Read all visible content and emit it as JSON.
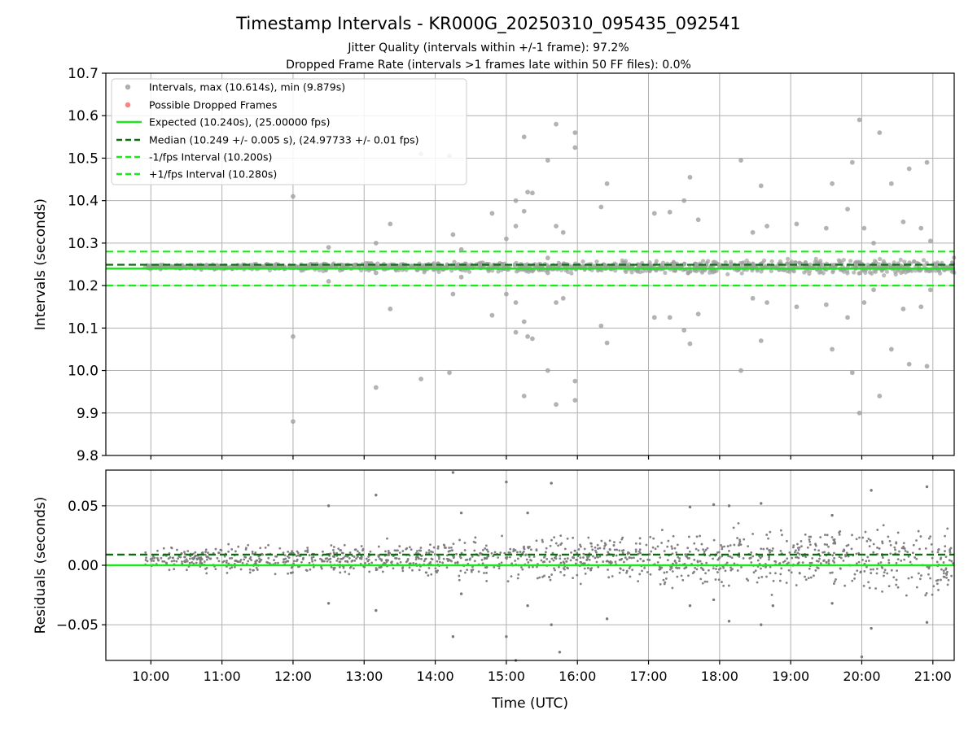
{
  "figure": {
    "title": "Timestamp Intervals - KR000G_20250310_095435_092541",
    "subtitle_1": "Jitter Quality (intervals within +/-1 frame): 97.2%",
    "subtitle_2": "Dropped Frame Rate (intervals >1 frames late within 50 FF files): 0.0%"
  },
  "colors": {
    "intervals": "#a0a0a0",
    "residuals": "#7a7a7a",
    "dropped": "#ff6b6b",
    "expected": "#1ee61e",
    "median": "#0e6b0e",
    "fps_bounds": "#1ee61e",
    "grid": "#b0b0b0"
  },
  "chart_data": [
    {
      "type": "scatter",
      "panel": "intervals",
      "ylabel": "Intervals (seconds)",
      "xlabel": "",
      "xlim": [
        "09:22",
        "21:18"
      ],
      "ylim": [
        9.8,
        10.7
      ],
      "yticks": [
        9.8,
        9.9,
        10.0,
        10.1,
        10.2,
        10.3,
        10.4,
        10.5,
        10.6,
        10.7
      ],
      "ytick_labels": [
        "9.8",
        "9.9",
        "10.0",
        "10.1",
        "10.2",
        "10.3",
        "10.4",
        "10.5",
        "10.6",
        "10.7"
      ],
      "grid": true,
      "legend_position": "top-left",
      "legend": [
        "Intervals, max (10.614s), min (9.879s)",
        "Possible Dropped Frames",
        "Expected (10.240s), (25.00000 fps)",
        "Median (10.249 +/- 0.005 s), (24.97733 +/- 0.01 fps)",
        "-1/fps Interval (10.200s)",
        "+1/fps Interval (10.280s)"
      ],
      "reference_lines": {
        "expected": 10.24,
        "median": 10.249,
        "minus_1fps": 10.2,
        "plus_1fps": 10.28
      },
      "dense_band": {
        "x_start": "09:55",
        "x_end": "21:18",
        "y_center": 10.244,
        "y_spread_start": 0.004,
        "y_spread_end": 0.013
      },
      "outliers": [
        {
          "x": "12:00",
          "y": 10.41
        },
        {
          "x": "12:00",
          "y": 10.08
        },
        {
          "x": "12:00",
          "y": 9.88
        },
        {
          "x": "12:30",
          "y": 10.29
        },
        {
          "x": "12:30",
          "y": 10.21
        },
        {
          "x": "13:10",
          "y": 10.3
        },
        {
          "x": "13:10",
          "y": 9.96
        },
        {
          "x": "13:10",
          "y": 10.23
        },
        {
          "x": "13:22",
          "y": 10.345
        },
        {
          "x": "13:22",
          "y": 10.145
        },
        {
          "x": "13:48",
          "y": 10.51
        },
        {
          "x": "13:48",
          "y": 9.98
        },
        {
          "x": "14:12",
          "y": 10.505
        },
        {
          "x": "14:12",
          "y": 9.995
        },
        {
          "x": "14:15",
          "y": 10.32
        },
        {
          "x": "14:15",
          "y": 10.18
        },
        {
          "x": "14:22",
          "y": 10.285
        },
        {
          "x": "14:22",
          "y": 10.22
        },
        {
          "x": "14:48",
          "y": 10.37
        },
        {
          "x": "14:48",
          "y": 10.13
        },
        {
          "x": "15:00",
          "y": 10.31
        },
        {
          "x": "15:00",
          "y": 10.18
        },
        {
          "x": "15:08",
          "y": 10.4
        },
        {
          "x": "15:08",
          "y": 10.34
        },
        {
          "x": "15:08",
          "y": 10.16
        },
        {
          "x": "15:08",
          "y": 10.09
        },
        {
          "x": "15:15",
          "y": 10.55
        },
        {
          "x": "15:15",
          "y": 10.375
        },
        {
          "x": "15:15",
          "y": 10.115
        },
        {
          "x": "15:15",
          "y": 9.94
        },
        {
          "x": "15:18",
          "y": 10.42
        },
        {
          "x": "15:18",
          "y": 10.08
        },
        {
          "x": "15:22",
          "y": 10.418
        },
        {
          "x": "15:22",
          "y": 10.075
        },
        {
          "x": "15:35",
          "y": 10.265
        },
        {
          "x": "15:35",
          "y": 10.23
        },
        {
          "x": "15:42",
          "y": 10.58
        },
        {
          "x": "15:42",
          "y": 10.34
        },
        {
          "x": "15:42",
          "y": 10.16
        },
        {
          "x": "15:42",
          "y": 9.92
        },
        {
          "x": "15:35",
          "y": 10.495
        },
        {
          "x": "15:35",
          "y": 10.0
        },
        {
          "x": "15:48",
          "y": 10.325
        },
        {
          "x": "15:48",
          "y": 10.17
        },
        {
          "x": "15:58",
          "y": 10.56
        },
        {
          "x": "15:58",
          "y": 10.525
        },
        {
          "x": "15:58",
          "y": 9.975
        },
        {
          "x": "15:58",
          "y": 9.93
        },
        {
          "x": "16:20",
          "y": 10.385
        },
        {
          "x": "16:20",
          "y": 10.105
        },
        {
          "x": "16:25",
          "y": 10.44
        },
        {
          "x": "16:25",
          "y": 10.065
        },
        {
          "x": "17:05",
          "y": 10.37
        },
        {
          "x": "17:05",
          "y": 10.125
        },
        {
          "x": "17:18",
          "y": 10.373
        },
        {
          "x": "17:18",
          "y": 10.125
        },
        {
          "x": "17:30",
          "y": 10.4
        },
        {
          "x": "17:30",
          "y": 10.095
        },
        {
          "x": "17:35",
          "y": 10.455
        },
        {
          "x": "17:35",
          "y": 10.063
        },
        {
          "x": "17:42",
          "y": 10.355
        },
        {
          "x": "17:42",
          "y": 10.133
        },
        {
          "x": "18:18",
          "y": 10.495
        },
        {
          "x": "18:18",
          "y": 10.0
        },
        {
          "x": "18:28",
          "y": 10.325
        },
        {
          "x": "18:28",
          "y": 10.17
        },
        {
          "x": "18:35",
          "y": 10.435
        },
        {
          "x": "18:35",
          "y": 10.07
        },
        {
          "x": "18:40",
          "y": 10.34
        },
        {
          "x": "18:40",
          "y": 10.16
        },
        {
          "x": "19:05",
          "y": 10.345
        },
        {
          "x": "19:05",
          "y": 10.15
        },
        {
          "x": "19:30",
          "y": 10.335
        },
        {
          "x": "19:30",
          "y": 10.155
        },
        {
          "x": "19:35",
          "y": 10.44
        },
        {
          "x": "19:35",
          "y": 10.05
        },
        {
          "x": "19:48",
          "y": 10.38
        },
        {
          "x": "19:48",
          "y": 10.125
        },
        {
          "x": "19:52",
          "y": 10.49
        },
        {
          "x": "19:52",
          "y": 9.995
        },
        {
          "x": "19:58",
          "y": 10.59
        },
        {
          "x": "19:58",
          "y": 9.9
        },
        {
          "x": "20:02",
          "y": 10.335
        },
        {
          "x": "20:02",
          "y": 10.16
        },
        {
          "x": "20:10",
          "y": 10.3
        },
        {
          "x": "20:10",
          "y": 10.19
        },
        {
          "x": "20:15",
          "y": 10.56
        },
        {
          "x": "20:15",
          "y": 9.94
        },
        {
          "x": "20:25",
          "y": 10.44
        },
        {
          "x": "20:25",
          "y": 10.05
        },
        {
          "x": "20:35",
          "y": 10.35
        },
        {
          "x": "20:35",
          "y": 10.145
        },
        {
          "x": "20:40",
          "y": 10.475
        },
        {
          "x": "20:40",
          "y": 10.015
        },
        {
          "x": "20:50",
          "y": 10.335
        },
        {
          "x": "20:50",
          "y": 10.15
        },
        {
          "x": "20:55",
          "y": 10.49
        },
        {
          "x": "20:55",
          "y": 10.01
        },
        {
          "x": "20:58",
          "y": 10.305
        },
        {
          "x": "20:58",
          "y": 10.19
        }
      ]
    },
    {
      "type": "scatter",
      "panel": "residuals",
      "ylabel": "Residuals (seconds)",
      "xlabel": "Time (UTC)",
      "xlim": [
        "09:22",
        "21:18"
      ],
      "ylim": [
        -0.08,
        0.08
      ],
      "yticks": [
        -0.05,
        0.0,
        0.05
      ],
      "ytick_labels": [
        "−0.05",
        "0.00",
        "0.05"
      ],
      "xticks": [
        "10:00",
        "11:00",
        "12:00",
        "13:00",
        "14:00",
        "15:00",
        "16:00",
        "17:00",
        "18:00",
        "19:00",
        "20:00",
        "21:00"
      ],
      "xtick_labels": [
        "10:00",
        "11:00",
        "12:00",
        "13:00",
        "14:00",
        "15:00",
        "16:00",
        "17:00",
        "18:00",
        "19:00",
        "20:00",
        "21:00"
      ],
      "grid": true,
      "reference_lines": {
        "expected": 0.0,
        "median": 0.009
      },
      "dense_band": {
        "x_start": "09:55",
        "x_end": "21:18",
        "y_center": 0.005,
        "y_spread_start": 0.006,
        "y_spread_end": 0.02
      },
      "outliers": [
        {
          "x": "12:30",
          "y": 0.05
        },
        {
          "x": "12:30",
          "y": -0.032
        },
        {
          "x": "13:10",
          "y": 0.059
        },
        {
          "x": "13:10",
          "y": -0.038
        },
        {
          "x": "14:15",
          "y": 0.078
        },
        {
          "x": "14:15",
          "y": -0.06
        },
        {
          "x": "14:22",
          "y": 0.044
        },
        {
          "x": "14:22",
          "y": -0.024
        },
        {
          "x": "15:00",
          "y": 0.07
        },
        {
          "x": "15:00",
          "y": -0.06
        },
        {
          "x": "15:08",
          "y": -0.08
        },
        {
          "x": "15:18",
          "y": 0.044
        },
        {
          "x": "15:18",
          "y": -0.034
        },
        {
          "x": "15:38",
          "y": 0.069
        },
        {
          "x": "15:38",
          "y": -0.05
        },
        {
          "x": "15:45",
          "y": -0.073
        },
        {
          "x": "16:25",
          "y": -0.045
        },
        {
          "x": "17:35",
          "y": 0.049
        },
        {
          "x": "17:35",
          "y": -0.034
        },
        {
          "x": "17:55",
          "y": 0.051
        },
        {
          "x": "17:55",
          "y": -0.029
        },
        {
          "x": "18:08",
          "y": 0.05
        },
        {
          "x": "18:08",
          "y": -0.047
        },
        {
          "x": "18:35",
          "y": 0.052
        },
        {
          "x": "18:35",
          "y": -0.05
        },
        {
          "x": "18:45",
          "y": -0.034
        },
        {
          "x": "19:35",
          "y": 0.042
        },
        {
          "x": "19:35",
          "y": -0.032
        },
        {
          "x": "20:00",
          "y": -0.077
        },
        {
          "x": "20:08",
          "y": 0.063
        },
        {
          "x": "20:08",
          "y": -0.053
        },
        {
          "x": "20:55",
          "y": 0.066
        },
        {
          "x": "20:55",
          "y": -0.048
        }
      ]
    }
  ]
}
